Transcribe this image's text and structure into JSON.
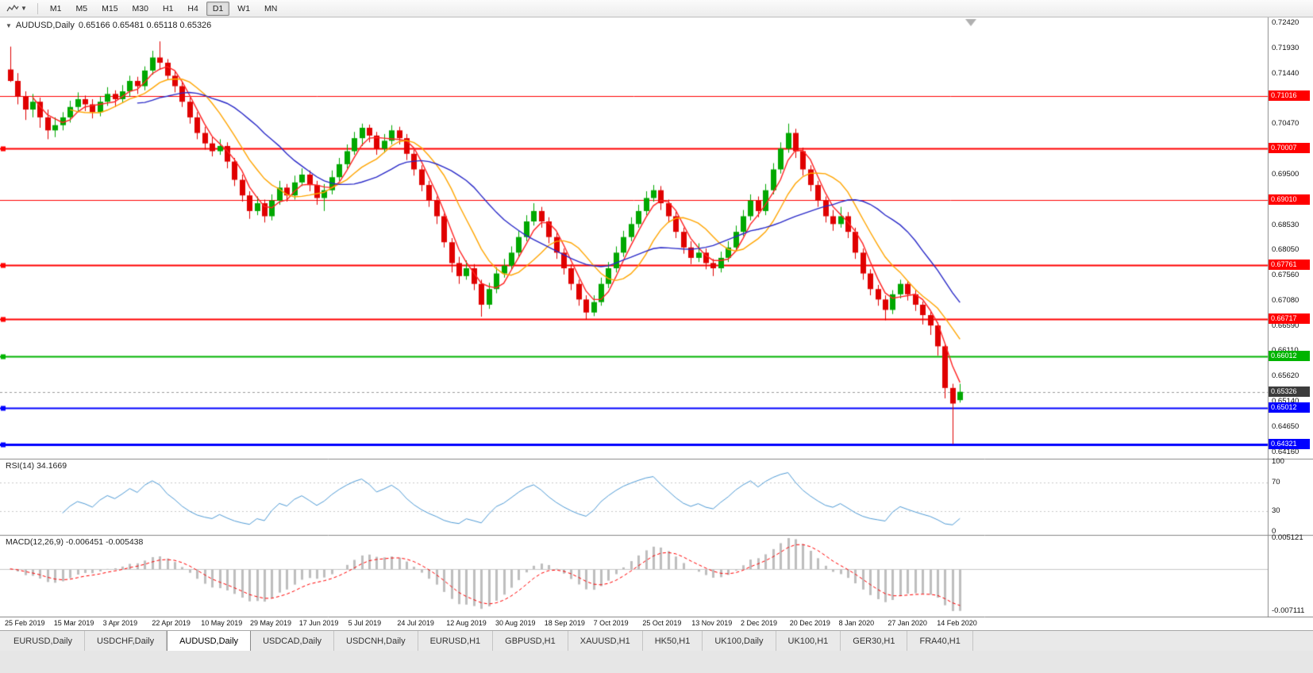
{
  "toolbar": {
    "timeframes": [
      "M1",
      "M5",
      "M15",
      "M30",
      "H1",
      "H4",
      "D1",
      "W1",
      "MN"
    ],
    "active_timeframe": "D1"
  },
  "chart": {
    "title": "AUDUSD,Daily",
    "ohlc_label": "0.65166 0.65481 0.65118 0.65326"
  },
  "chart_data": {
    "type": "candlestick",
    "symbol": "AUDUSD",
    "period": "Daily",
    "open": 0.65166,
    "high": 0.65481,
    "low": 0.65118,
    "close": 0.65326,
    "x_labels": [
      "25 Feb 2019",
      "15 Mar 2019",
      "3 Apr 2019",
      "22 Apr 2019",
      "10 May 2019",
      "29 May 2019",
      "17 Jun 2019",
      "5 Jul 2019",
      "24 Jul 2019",
      "12 Aug 2019",
      "30 Aug 2019",
      "18 Sep 2019",
      "7 Oct 2019",
      "25 Oct 2019",
      "13 Nov 2019",
      "2 Dec 2019",
      "20 Dec 2019",
      "8 Jan 2020",
      "27 Jan 2020",
      "14 Feb 2020"
    ],
    "y_axis": {
      "min": 0.6404,
      "max": 0.7252,
      "ticks": [
        "0.72420",
        "0.71930",
        "0.71440",
        "0.70470",
        "0.69500",
        "0.68530",
        "0.68050",
        "0.67560",
        "0.67080",
        "0.66590",
        "0.66110",
        "0.65620",
        "0.65140",
        "0.64650",
        "0.64160"
      ]
    },
    "candles": [
      [
        0.7152,
        0.7196,
        0.7128,
        0.713
      ],
      [
        0.713,
        0.7145,
        0.7085,
        0.71
      ],
      [
        0.71,
        0.711,
        0.7055,
        0.7075
      ],
      [
        0.7075,
        0.7105,
        0.706,
        0.709
      ],
      [
        0.709,
        0.7098,
        0.704,
        0.706
      ],
      [
        0.706,
        0.7075,
        0.7018,
        0.7035
      ],
      [
        0.7035,
        0.706,
        0.7022,
        0.7045
      ],
      [
        0.7045,
        0.707,
        0.7035,
        0.706
      ],
      [
        0.706,
        0.7092,
        0.705,
        0.708
      ],
      [
        0.708,
        0.7108,
        0.707,
        0.7095
      ],
      [
        0.7095,
        0.7102,
        0.7072,
        0.7085
      ],
      [
        0.7085,
        0.7095,
        0.7058,
        0.707
      ],
      [
        0.707,
        0.71,
        0.7062,
        0.709
      ],
      [
        0.709,
        0.7118,
        0.7082,
        0.7105
      ],
      [
        0.7105,
        0.7112,
        0.708,
        0.7095
      ],
      [
        0.7095,
        0.7122,
        0.7088,
        0.711
      ],
      [
        0.711,
        0.714,
        0.71,
        0.713
      ],
      [
        0.713,
        0.7138,
        0.7105,
        0.712
      ],
      [
        0.712,
        0.7158,
        0.7112,
        0.715
      ],
      [
        0.715,
        0.7188,
        0.7142,
        0.7175
      ],
      [
        0.7175,
        0.7206,
        0.7152,
        0.7165
      ],
      [
        0.7165,
        0.7172,
        0.7132,
        0.714
      ],
      [
        0.714,
        0.715,
        0.7108,
        0.712
      ],
      [
        0.712,
        0.7128,
        0.708,
        0.709
      ],
      [
        0.709,
        0.7098,
        0.7048,
        0.706
      ],
      [
        0.706,
        0.707,
        0.7018,
        0.703
      ],
      [
        0.703,
        0.7042,
        0.6998,
        0.701
      ],
      [
        0.701,
        0.7022,
        0.6985,
        0.6995
      ],
      [
        0.6995,
        0.7018,
        0.6988,
        0.7005
      ],
      [
        0.7005,
        0.7012,
        0.6962,
        0.6975
      ],
      [
        0.6975,
        0.6982,
        0.6928,
        0.694
      ],
      [
        0.694,
        0.695,
        0.6898,
        0.691
      ],
      [
        0.691,
        0.6918,
        0.6865,
        0.688
      ],
      [
        0.688,
        0.6908,
        0.6872,
        0.6895
      ],
      [
        0.6895,
        0.6902,
        0.6858,
        0.687
      ],
      [
        0.687,
        0.6912,
        0.6862,
        0.69
      ],
      [
        0.69,
        0.6938,
        0.6892,
        0.6925
      ],
      [
        0.6925,
        0.6932,
        0.6898,
        0.691
      ],
      [
        0.691,
        0.6948,
        0.6902,
        0.6935
      ],
      [
        0.6935,
        0.6962,
        0.6928,
        0.695
      ],
      [
        0.695,
        0.6958,
        0.6918,
        0.693
      ],
      [
        0.693,
        0.6938,
        0.6892,
        0.6905
      ],
      [
        0.6905,
        0.6932,
        0.688,
        0.692
      ],
      [
        0.692,
        0.6958,
        0.6912,
        0.6945
      ],
      [
        0.6945,
        0.6982,
        0.6938,
        0.697
      ],
      [
        0.697,
        0.7008,
        0.6962,
        0.6995
      ],
      [
        0.6995,
        0.7032,
        0.6988,
        0.702
      ],
      [
        0.702,
        0.7048,
        0.7005,
        0.704
      ],
      [
        0.704,
        0.7046,
        0.7012,
        0.7025
      ],
      [
        0.7025,
        0.7032,
        0.6988,
        0.7
      ],
      [
        0.7,
        0.7028,
        0.6992,
        0.7015
      ],
      [
        0.7015,
        0.7045,
        0.7008,
        0.7035
      ],
      [
        0.7035,
        0.7042,
        0.7008,
        0.702
      ],
      [
        0.702,
        0.7028,
        0.6978,
        0.699
      ],
      [
        0.699,
        0.6998,
        0.6948,
        0.696
      ],
      [
        0.696,
        0.6968,
        0.6918,
        0.693
      ],
      [
        0.693,
        0.6938,
        0.6888,
        0.69
      ],
      [
        0.69,
        0.6908,
        0.6855,
        0.687
      ],
      [
        0.687,
        0.6875,
        0.681,
        0.682
      ],
      [
        0.682,
        0.6828,
        0.6762,
        0.678
      ],
      [
        0.678,
        0.6792,
        0.674,
        0.6755
      ],
      [
        0.6755,
        0.6785,
        0.6748,
        0.677
      ],
      [
        0.677,
        0.6778,
        0.6728,
        0.674
      ],
      [
        0.674,
        0.6748,
        0.6677,
        0.67
      ],
      [
        0.67,
        0.6742,
        0.6692,
        0.673
      ],
      [
        0.673,
        0.6772,
        0.6722,
        0.676
      ],
      [
        0.676,
        0.6788,
        0.6752,
        0.6775
      ],
      [
        0.6775,
        0.6812,
        0.6768,
        0.68
      ],
      [
        0.68,
        0.6842,
        0.6792,
        0.683
      ],
      [
        0.683,
        0.6872,
        0.6822,
        0.686
      ],
      [
        0.686,
        0.6895,
        0.6852,
        0.688
      ],
      [
        0.688,
        0.6888,
        0.6848,
        0.686
      ],
      [
        0.686,
        0.6868,
        0.6818,
        0.683
      ],
      [
        0.683,
        0.6838,
        0.6788,
        0.68
      ],
      [
        0.68,
        0.6808,
        0.6758,
        0.677
      ],
      [
        0.677,
        0.6778,
        0.6728,
        0.674
      ],
      [
        0.674,
        0.6748,
        0.6698,
        0.671
      ],
      [
        0.671,
        0.6718,
        0.6671,
        0.6685
      ],
      [
        0.6685,
        0.6718,
        0.6678,
        0.6705
      ],
      [
        0.6705,
        0.6752,
        0.6698,
        0.674
      ],
      [
        0.674,
        0.6782,
        0.6732,
        0.677
      ],
      [
        0.677,
        0.6812,
        0.6762,
        0.68
      ],
      [
        0.68,
        0.6842,
        0.6792,
        0.683
      ],
      [
        0.683,
        0.6868,
        0.6822,
        0.6855
      ],
      [
        0.6855,
        0.6892,
        0.6848,
        0.688
      ],
      [
        0.688,
        0.6918,
        0.6872,
        0.6905
      ],
      [
        0.6905,
        0.693,
        0.6898,
        0.692
      ],
      [
        0.692,
        0.6928,
        0.6882,
        0.6895
      ],
      [
        0.6895,
        0.6902,
        0.6858,
        0.687
      ],
      [
        0.687,
        0.6878,
        0.6828,
        0.684
      ],
      [
        0.684,
        0.6848,
        0.6798,
        0.681
      ],
      [
        0.681,
        0.6822,
        0.6778,
        0.679
      ],
      [
        0.679,
        0.6818,
        0.6782,
        0.68
      ],
      [
        0.68,
        0.6808,
        0.6768,
        0.678
      ],
      [
        0.678,
        0.6788,
        0.6755,
        0.677
      ],
      [
        0.677,
        0.6802,
        0.6762,
        0.679
      ],
      [
        0.679,
        0.6822,
        0.6782,
        0.681
      ],
      [
        0.681,
        0.6852,
        0.6802,
        0.684
      ],
      [
        0.684,
        0.6882,
        0.6832,
        0.687
      ],
      [
        0.687,
        0.6912,
        0.6862,
        0.69
      ],
      [
        0.69,
        0.6908,
        0.6868,
        0.688
      ],
      [
        0.688,
        0.6932,
        0.6872,
        0.692
      ],
      [
        0.692,
        0.6972,
        0.6912,
        0.696
      ],
      [
        0.696,
        0.7012,
        0.6952,
        0.7
      ],
      [
        0.7,
        0.7048,
        0.6992,
        0.703
      ],
      [
        0.703,
        0.7038,
        0.6982,
        0.6995
      ],
      [
        0.6995,
        0.7002,
        0.6948,
        0.696
      ],
      [
        0.696,
        0.6968,
        0.6918,
        0.693
      ],
      [
        0.693,
        0.6938,
        0.6888,
        0.69
      ],
      [
        0.69,
        0.6908,
        0.6858,
        0.687
      ],
      [
        0.687,
        0.6882,
        0.6842,
        0.6855
      ],
      [
        0.6855,
        0.6888,
        0.6848,
        0.687
      ],
      [
        0.687,
        0.6878,
        0.6828,
        0.684
      ],
      [
        0.684,
        0.6848,
        0.6788,
        0.68
      ],
      [
        0.68,
        0.6808,
        0.6748,
        0.676
      ],
      [
        0.676,
        0.6768,
        0.6718,
        0.673
      ],
      [
        0.673,
        0.6738,
        0.6698,
        0.671
      ],
      [
        0.671,
        0.6718,
        0.667,
        0.669
      ],
      [
        0.669,
        0.6728,
        0.6682,
        0.672
      ],
      [
        0.672,
        0.6748,
        0.6712,
        0.674
      ],
      [
        0.674,
        0.6746,
        0.6708,
        0.672
      ],
      [
        0.672,
        0.6728,
        0.6688,
        0.67
      ],
      [
        0.67,
        0.6706,
        0.6662,
        0.668
      ],
      [
        0.668,
        0.6688,
        0.6642,
        0.666
      ],
      [
        0.666,
        0.6666,
        0.6602,
        0.662
      ],
      [
        0.662,
        0.6626,
        0.652,
        0.654
      ],
      [
        0.654,
        0.6548,
        0.6432,
        0.651
      ],
      [
        0.65166,
        0.65481,
        0.65118,
        0.65326
      ]
    ],
    "h_lines": [
      {
        "value": 0.71016,
        "label": "0.71016",
        "color": "#FF0000",
        "width": 1
      },
      {
        "value": 0.70007,
        "label": "0.70007",
        "color": "#FF0000",
        "width": 2
      },
      {
        "value": 0.6901,
        "label": "0.69010",
        "color": "#FF0000",
        "width": 1
      },
      {
        "value": 0.67761,
        "label": "0.67761",
        "color": "#FF0000",
        "width": 2
      },
      {
        "value": 0.66717,
        "label": "0.66717",
        "color": "#FF0000",
        "width": 2
      },
      {
        "value": 0.66012,
        "label": "0.66012",
        "color": "#00B400",
        "width": 2
      },
      {
        "value": 0.65012,
        "label": "0.65012",
        "color": "#0000FF",
        "width": 2
      },
      {
        "value": 0.64321,
        "label": "0.64321",
        "color": "#0000FF",
        "width": 3
      }
    ],
    "bid_line": {
      "value": 0.65326,
      "label": "0.65326",
      "color": "#3c3c3c"
    },
    "moving_averages": [
      {
        "period": 4,
        "color": "#FF2222"
      },
      {
        "period": 9,
        "color": "#FFA500"
      },
      {
        "period": 18,
        "color": "#2929C8"
      }
    ],
    "indicators": [
      {
        "name": "RSI",
        "label": "RSI(14) 34.1669",
        "value": 34.1669,
        "period": 14,
        "levels": [
          "100",
          "70",
          "30",
          "0"
        ],
        "color": "#4F9BD6"
      },
      {
        "name": "MACD",
        "label": "MACD(12,26,9) -0.006451 -0.005438",
        "value": -0.006451,
        "signal": -0.005438,
        "params": [
          12,
          26,
          9
        ],
        "scale_top": 0.005121,
        "scale_bottom": -0.007111,
        "histogram_color": "#BEBEBE",
        "signal_color": "#FF0000"
      }
    ],
    "colors": {
      "up": "#00A800",
      "down": "#E00000",
      "background": "#FFFFFF"
    }
  },
  "tabs": {
    "items": [
      "EURUSD,Daily",
      "USDCHF,Daily",
      "AUDUSD,Daily",
      "USDCAD,Daily",
      "USDCNH,Daily",
      "EURUSD,H1",
      "GBPUSD,H1",
      "XAUUSD,H1",
      "HK50,H1",
      "UK100,Daily",
      "UK100,H1",
      "GER30,H1",
      "FRA40,H1"
    ],
    "active": "AUDUSD,Daily"
  }
}
